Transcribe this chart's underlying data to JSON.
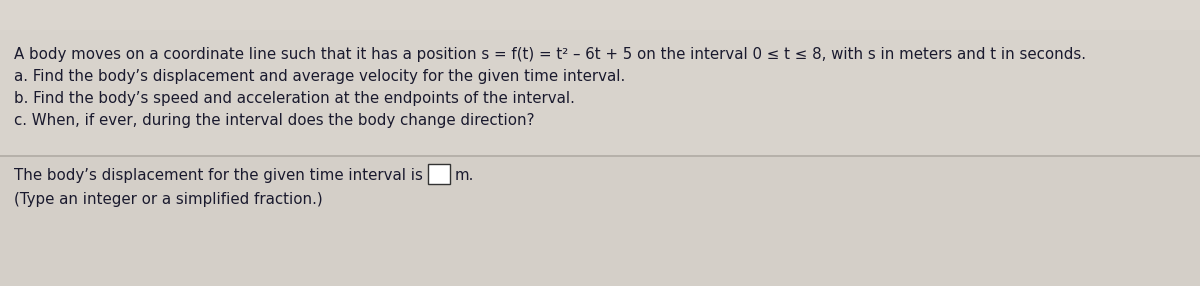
{
  "background_color": "#d4cfc8",
  "header_color": "#e8e4de",
  "divider_color": "#aaaaaa",
  "line1": "A body moves on a coordinate line such that it has a position s = f(t) = t² – 6t + 5 on the interval 0 ≤ t ≤ 8, with s in meters and t in seconds.",
  "line2": "a. Find the body’s displacement and average velocity for the given time interval.",
  "line3": "b. Find the body’s speed and acceleration at the endpoints of the interval.",
  "line4": "c. When, if ever, during the interval does the body change direction?",
  "line5": "The body’s displacement for the given time interval is",
  "line6": "(Type an integer or a simplified fraction.)",
  "font_size_main": 10.8,
  "text_color": "#1a1a2e",
  "box_color": "#ffffff",
  "m_label": "m."
}
